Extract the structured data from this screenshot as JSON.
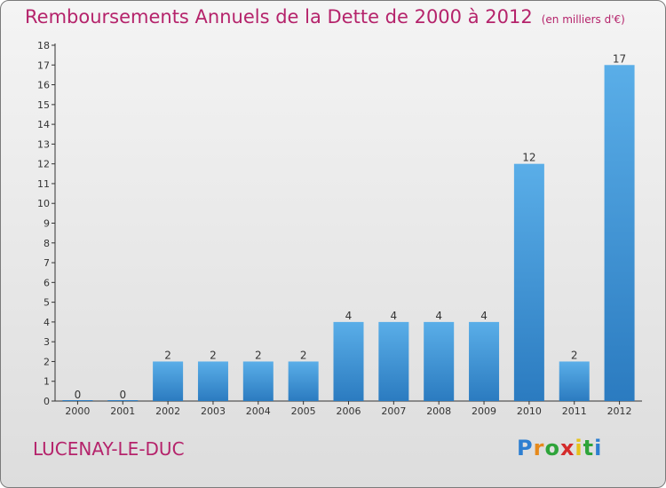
{
  "title": "Remboursements Annuels de la Dette de 2000 à 2012",
  "unit": "(en milliers d'€)",
  "place": "LUCENAY-LE-DUC",
  "logo": {
    "letters": [
      "P",
      "r",
      "o",
      "x",
      "i",
      "t",
      "i"
    ],
    "colors": [
      "#2e7fd1",
      "#e6891b",
      "#2ea43a",
      "#d42b2b",
      "#e6c21b",
      "#2ea43a",
      "#2e7fd1"
    ]
  },
  "colors": {
    "bar_light": "#5aaee8",
    "bar_dark": "#2b7bc0",
    "accent": "#b5236b",
    "axis": "#333333"
  },
  "chart_data": {
    "type": "bar",
    "categories": [
      "2000",
      "2001",
      "2002",
      "2003",
      "2004",
      "2005",
      "2006",
      "2007",
      "2008",
      "2009",
      "2010",
      "2011",
      "2012"
    ],
    "values": [
      0,
      0,
      2,
      2,
      2,
      2,
      4,
      4,
      4,
      4,
      12,
      2,
      17
    ],
    "data_labels": [
      "0",
      "0",
      "2",
      "2",
      "2",
      "2",
      "4",
      "4",
      "4",
      "4",
      "12",
      "2",
      "17"
    ],
    "ylim": [
      0,
      18
    ],
    "yticks": [
      "0",
      "1",
      "2",
      "3",
      "4",
      "5",
      "6",
      "7",
      "8",
      "9",
      "10",
      "11",
      "12",
      "13",
      "14",
      "15",
      "16",
      "17",
      "18"
    ],
    "xlabel": "",
    "ylabel": "",
    "grid": false
  }
}
